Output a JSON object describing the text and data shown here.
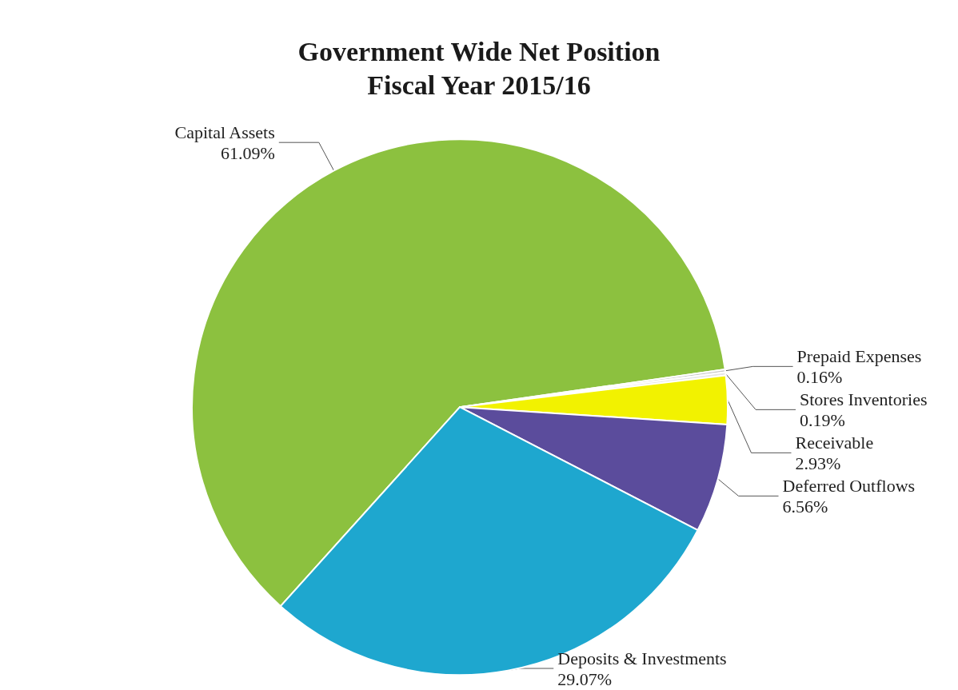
{
  "chart_data": {
    "type": "pie",
    "title": "Government Wide Net Position\nFiscal Year 2015/16",
    "categories": [
      "Capital Assets",
      "Prepaid Expenses",
      "Stores Inventories",
      "Receivable",
      "Deferred Outflows",
      "Deposits & Investments"
    ],
    "values": [
      61.09,
      0.16,
      0.19,
      2.93,
      6.56,
      29.07
    ],
    "value_labels": [
      "61.09%",
      "0.16%",
      "0.19%",
      "2.93%",
      "6.56%",
      "29.07%"
    ],
    "colors": [
      "#8cc13f",
      "#c8c8c8",
      "#e6e6e6",
      "#f2f200",
      "#5b4c9c",
      "#1ea7cf"
    ],
    "legend": false
  }
}
